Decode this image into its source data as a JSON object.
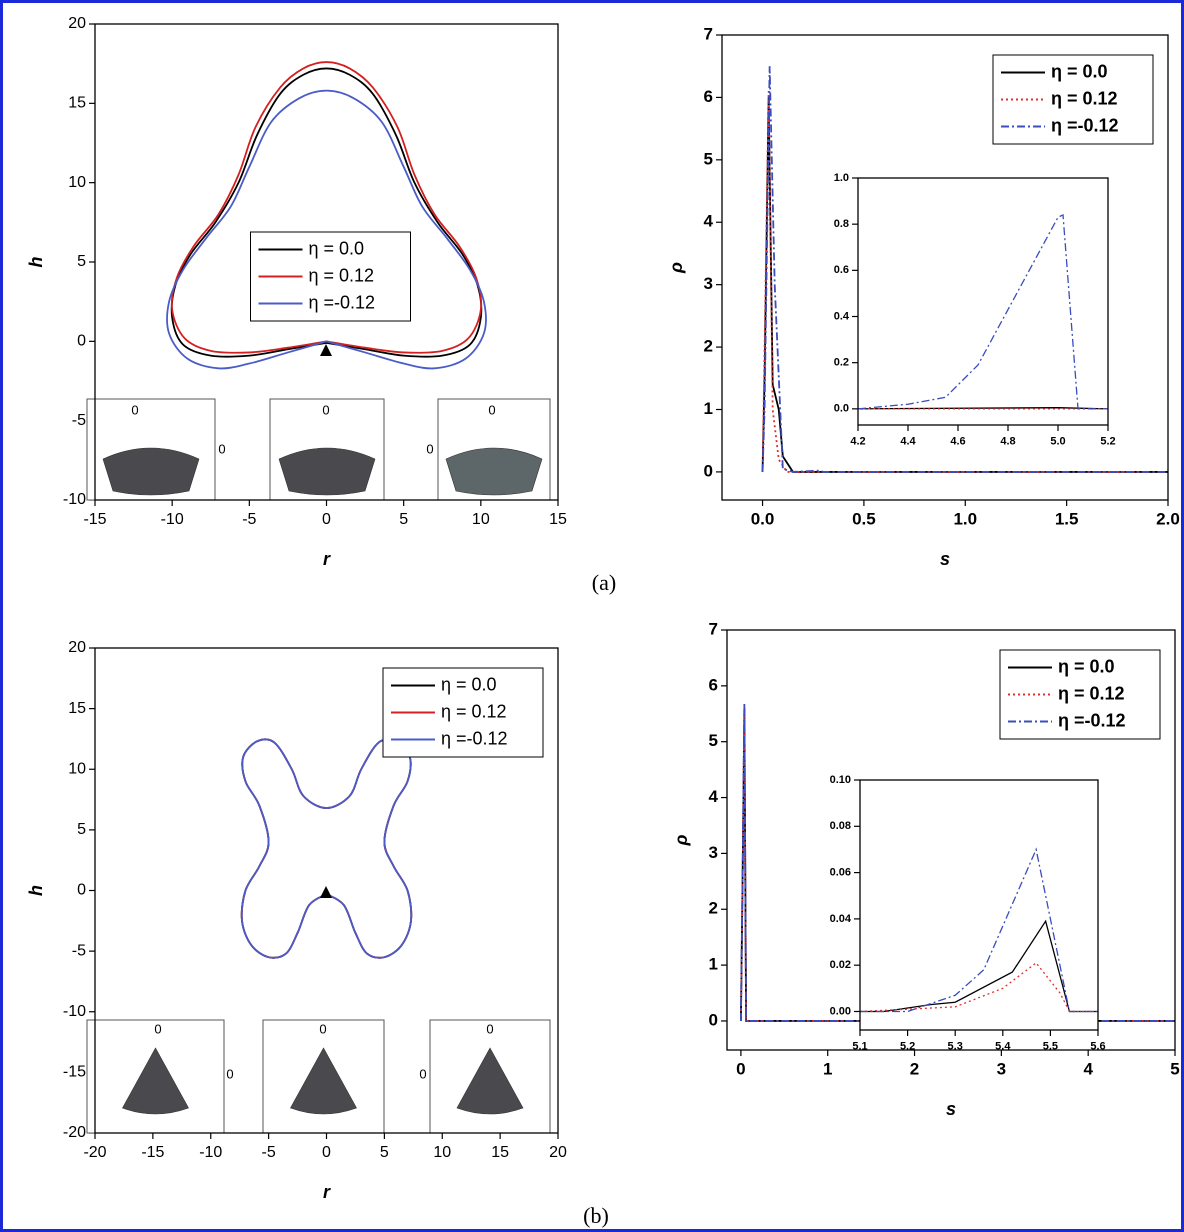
{
  "panel_labels": [
    "(a)",
    "(b)"
  ],
  "chart_data": [
    {
      "type": "line",
      "curve": "smooth",
      "x_label": "r",
      "y_label": "h",
      "xlim": [
        -15,
        15
      ],
      "ylim": [
        -10,
        20
      ],
      "xticks": [
        -15,
        -10,
        -5,
        0,
        5,
        10,
        15
      ],
      "yticks": [
        -10,
        -5,
        0,
        5,
        10,
        15,
        20
      ],
      "legend": "center",
      "sector_labels": [
        "0",
        "0",
        "0",
        "0",
        "0"
      ],
      "series": [
        {
          "name": "η = 0.0",
          "color": "#000000",
          "dash": "solid",
          "x": [
            0,
            2.5,
            5,
            7.5,
            9.3,
            10,
            9.8,
            8.8,
            7.2,
            5.7,
            4.5,
            3,
            1.5,
            0,
            -1.5,
            -3,
            -4.5,
            -5.7,
            -7.2,
            -8.8,
            -9.8,
            -10,
            -9.3,
            -7.5,
            -5,
            -2.5,
            0
          ],
          "values": [
            -0.1,
            -0.5,
            -0.9,
            -0.9,
            -0.2,
            1.5,
            3.5,
            5.5,
            7.5,
            10,
            13,
            15.6,
            16.8,
            17.2,
            16.8,
            15.6,
            13,
            10,
            7.5,
            5.5,
            3.5,
            1.5,
            -0.2,
            -0.9,
            -0.9,
            -0.5,
            -0.1
          ]
        },
        {
          "name": "η = 0.12",
          "color": "#d42020",
          "dash": "solid",
          "x": [
            0,
            2.5,
            5,
            7.5,
            9.2,
            10,
            9.7,
            8.6,
            7,
            5.7,
            4.6,
            3,
            1.5,
            0,
            -1.5,
            -3,
            -4.6,
            -5.7,
            -7,
            -8.6,
            -9.7,
            -10,
            -9.2,
            -7.5,
            -5,
            -2.5,
            0
          ],
          "values": [
            0,
            -0.4,
            -0.7,
            -0.6,
            0.2,
            2,
            4,
            6,
            8,
            10.5,
            13.5,
            16,
            17.2,
            17.6,
            17.2,
            16,
            13.5,
            10.5,
            8,
            6,
            4,
            2,
            0.2,
            -0.6,
            -0.7,
            -0.4,
            0
          ]
        },
        {
          "name": "η =-0.12",
          "color": "#4a5cc8",
          "dash": "solid",
          "x": [
            0,
            2.5,
            5,
            7,
            9,
            10.2,
            10.2,
            9.3,
            7.8,
            6.2,
            5,
            3.6,
            1.8,
            0,
            -1.8,
            -3.6,
            -5,
            -6.2,
            -7.8,
            -9.3,
            -10.2,
            -10.2,
            -9,
            -7,
            -5,
            -2.5,
            0
          ],
          "values": [
            0,
            -0.7,
            -1.4,
            -1.7,
            -1.1,
            0.5,
            2.5,
            4.5,
            6.5,
            8.5,
            11,
            13.8,
            15.3,
            15.8,
            15.3,
            13.8,
            11,
            8.5,
            6.5,
            4.5,
            2.5,
            0.5,
            -1.1,
            -1.7,
            -1.4,
            -0.7,
            0
          ]
        }
      ]
    },
    {
      "type": "line",
      "x_label": "s",
      "y_label": "ρ",
      "xlim": [
        -0.2,
        2.0
      ],
      "ylim": [
        -0.45,
        7
      ],
      "xticks": [
        {
          "value": 0,
          "label": "0.0"
        },
        0.5,
        {
          "value": 1,
          "label": "1.0"
        },
        1.5,
        {
          "value": 2,
          "label": "2.0"
        }
      ],
      "yticks": [
        0,
        1,
        2,
        3,
        4,
        5,
        6,
        7
      ],
      "legend": "upper right",
      "series": [
        {
          "name": "η = 0.0",
          "color": "#000000",
          "dash": "solid",
          "x": [
            0,
            0.01,
            0.03,
            0.05,
            0.08,
            0.1,
            0.15,
            2.0
          ],
          "values": [
            0,
            1.5,
            6.0,
            1.4,
            1.0,
            0.25,
            0,
            0
          ]
        },
        {
          "name": "η = 0.12",
          "color": "#e03030",
          "dash": "dot",
          "x": [
            0,
            0.01,
            0.03,
            0.05,
            0.08,
            0.12,
            2.0
          ],
          "values": [
            0,
            2.0,
            6.1,
            1.0,
            0.2,
            0,
            0
          ]
        },
        {
          "name": "η =-0.12",
          "color": "#3a4cc0",
          "dash": "dashdot",
          "x": [
            0,
            0.01,
            0.035,
            0.06,
            0.1,
            0.15,
            0.28,
            0.3,
            2.0
          ],
          "values": [
            0,
            1.0,
            6.5,
            3.0,
            0.05,
            0,
            0.02,
            0,
            0
          ]
        }
      ]
    },
    {
      "type": "line",
      "inset": true,
      "xlim": [
        4.2,
        5.2
      ],
      "ylim": [
        -0.07,
        1.0
      ],
      "xticks": [
        4.2,
        4.4,
        4.6,
        4.8,
        {
          "value": 5,
          "label": "5.0"
        },
        5.2
      ],
      "yticks": [
        {
          "value": 0,
          "label": "0.0"
        },
        0.2,
        0.4,
        0.6,
        0.8,
        {
          "value": 1,
          "label": "1.0"
        }
      ],
      "series": [
        {
          "color": "#000000",
          "dash": "solid",
          "x": [
            4.2,
            5.0,
            5.2
          ],
          "values": [
            0,
            0.005,
            0
          ]
        },
        {
          "color": "#e03030",
          "dash": "dot",
          "x": [
            4.2,
            5.2
          ],
          "values": [
            0,
            0
          ]
        },
        {
          "color": "#3a4cc0",
          "dash": "dashdot",
          "x": [
            4.2,
            4.4,
            4.55,
            4.68,
            5.0,
            5.02,
            5.08,
            5.2
          ],
          "values": [
            0,
            0.02,
            0.05,
            0.19,
            0.83,
            0.84,
            0,
            0
          ]
        }
      ]
    },
    {
      "type": "line",
      "curve": "smooth",
      "x_label": "r",
      "y_label": "h",
      "xlim": [
        -20,
        20
      ],
      "ylim": [
        -20,
        20
      ],
      "xticks": [
        -20,
        -15,
        -10,
        -5,
        0,
        5,
        10,
        15,
        20
      ],
      "yticks": [
        -20,
        -15,
        -10,
        -5,
        0,
        5,
        10,
        15,
        20
      ],
      "legend": "upper right",
      "sector_labels": [
        "0",
        "0",
        "0",
        "0",
        "0"
      ],
      "series": [
        {
          "name": "η = 0.0",
          "color": "#000000",
          "dash": "solid",
          "x": [
            0,
            1.5,
            2.5,
            3.5,
            5,
            6.5,
            7.3,
            7,
            5.8,
            5,
            5.8,
            7,
            7.2,
            6,
            4.5,
            3,
            2,
            0,
            -2,
            -3,
            -4.5,
            -6,
            -7.2,
            -7,
            -5.8,
            -5,
            -5.8,
            -7,
            -7.3,
            -6.5,
            -5,
            -3.5,
            -2.5,
            -1.5,
            0
          ],
          "values": [
            -0.3,
            -1.2,
            -3.5,
            -5.2,
            -5.5,
            -4.5,
            -2.5,
            0,
            2,
            4,
            7,
            9,
            11,
            12.3,
            12.2,
            10,
            7.8,
            6.8,
            7.8,
            10,
            12.2,
            12.3,
            11,
            9,
            7,
            4,
            2,
            0,
            -2.5,
            -4.5,
            -5.5,
            -5.2,
            -3.5,
            -1.2,
            -0.3
          ]
        },
        {
          "name": "η = 0.12",
          "color": "#d42020",
          "dash": "solid",
          "x": [
            0,
            1.5,
            2.5,
            3.5,
            5,
            6.5,
            7.3,
            7,
            5.8,
            5,
            5.8,
            7,
            7.2,
            6,
            4.5,
            3,
            2,
            0,
            -2,
            -3,
            -4.5,
            -6,
            -7.2,
            -7,
            -5.8,
            -5,
            -5.8,
            -7,
            -7.3,
            -6.5,
            -5,
            -3.5,
            -2.5,
            -1.5,
            0
          ],
          "values": [
            -0.3,
            -1.2,
            -3.5,
            -5.2,
            -5.5,
            -4.5,
            -2.5,
            0,
            2,
            4,
            7,
            9,
            11,
            12.3,
            12.2,
            10,
            7.8,
            6.8,
            7.8,
            10,
            12.2,
            12.3,
            11,
            9,
            7,
            4,
            2,
            0,
            -2.5,
            -4.5,
            -5.5,
            -5.2,
            -3.5,
            -1.2,
            -0.3
          ]
        },
        {
          "name": "η =-0.12",
          "color": "#4a5cc8",
          "dash": "solid",
          "x": [
            0,
            1.5,
            2.5,
            3.5,
            5,
            6.5,
            7.3,
            7,
            5.8,
            5,
            5.8,
            7,
            7.2,
            6,
            4.5,
            3,
            2,
            0,
            -2,
            -3,
            -4.5,
            -6,
            -7.2,
            -7,
            -5.8,
            -5,
            -5.8,
            -7,
            -7.3,
            -6.5,
            -5,
            -3.5,
            -2.5,
            -1.5,
            0
          ],
          "values": [
            -0.3,
            -1.2,
            -3.5,
            -5.2,
            -5.5,
            -4.5,
            -2.5,
            0,
            2,
            4,
            7,
            9,
            11,
            12.3,
            12.2,
            10,
            7.8,
            6.8,
            7.8,
            10,
            12.2,
            12.3,
            11,
            9,
            7,
            4,
            2,
            0,
            -2.5,
            -4.5,
            -5.5,
            -5.2,
            -3.5,
            -1.2,
            -0.3
          ]
        }
      ]
    },
    {
      "type": "line",
      "x_label": "s",
      "y_label": "ρ",
      "xlim": [
        -0.16,
        5
      ],
      "ylim": [
        -0.52,
        7
      ],
      "xticks": [
        0,
        1,
        2,
        3,
        4,
        5
      ],
      "yticks": [
        0,
        1,
        2,
        3,
        4,
        5,
        6,
        7
      ],
      "legend": "upper right",
      "series": [
        {
          "name": "η = 0.0",
          "color": "#000000",
          "dash": "solid",
          "x": [
            0,
            0.02,
            0.04,
            0.06,
            5
          ],
          "values": [
            0,
            2.6,
            5.6,
            0,
            0
          ]
        },
        {
          "name": "η = 0.12",
          "color": "#e03030",
          "dash": "dot",
          "x": [
            0,
            0.02,
            0.04,
            0.06,
            5
          ],
          "values": [
            0,
            2.5,
            5.5,
            0,
            0
          ]
        },
        {
          "name": "η =-0.12",
          "color": "#3a4cc0",
          "dash": "dashdot",
          "x": [
            0,
            0.02,
            0.04,
            0.06,
            5
          ],
          "values": [
            0,
            2.7,
            5.7,
            0,
            0
          ]
        }
      ]
    },
    {
      "type": "line",
      "inset": true,
      "xlim": [
        5.1,
        5.6
      ],
      "ylim": [
        -0.008,
        0.1
      ],
      "xticks": [
        5.1,
        5.2,
        5.3,
        5.4,
        5.5,
        5.6
      ],
      "yticks": [
        {
          "value": 0,
          "label": "0.00"
        },
        0.02,
        0.04,
        0.06,
        0.08,
        {
          "value": 0.1,
          "label": "0.10"
        }
      ],
      "series": [
        {
          "color": "#000000",
          "dash": "solid",
          "x": [
            5.1,
            5.15,
            5.25,
            5.3,
            5.42,
            5.49,
            5.54,
            5.6
          ],
          "values": [
            0,
            0,
            0.003,
            0.004,
            0.017,
            0.039,
            0,
            0
          ]
        },
        {
          "color": "#e03030",
          "dash": "dot",
          "x": [
            5.1,
            5.3,
            5.4,
            5.47,
            5.52,
            5.54,
            5.6
          ],
          "values": [
            0,
            0.002,
            0.01,
            0.021,
            0.008,
            0,
            0
          ]
        },
        {
          "color": "#3a4cc0",
          "dash": "dashdot",
          "x": [
            5.1,
            5.2,
            5.3,
            5.36,
            5.47,
            5.54,
            5.6
          ],
          "values": [
            0,
            0,
            0.007,
            0.018,
            0.07,
            0,
            0
          ]
        }
      ]
    }
  ]
}
